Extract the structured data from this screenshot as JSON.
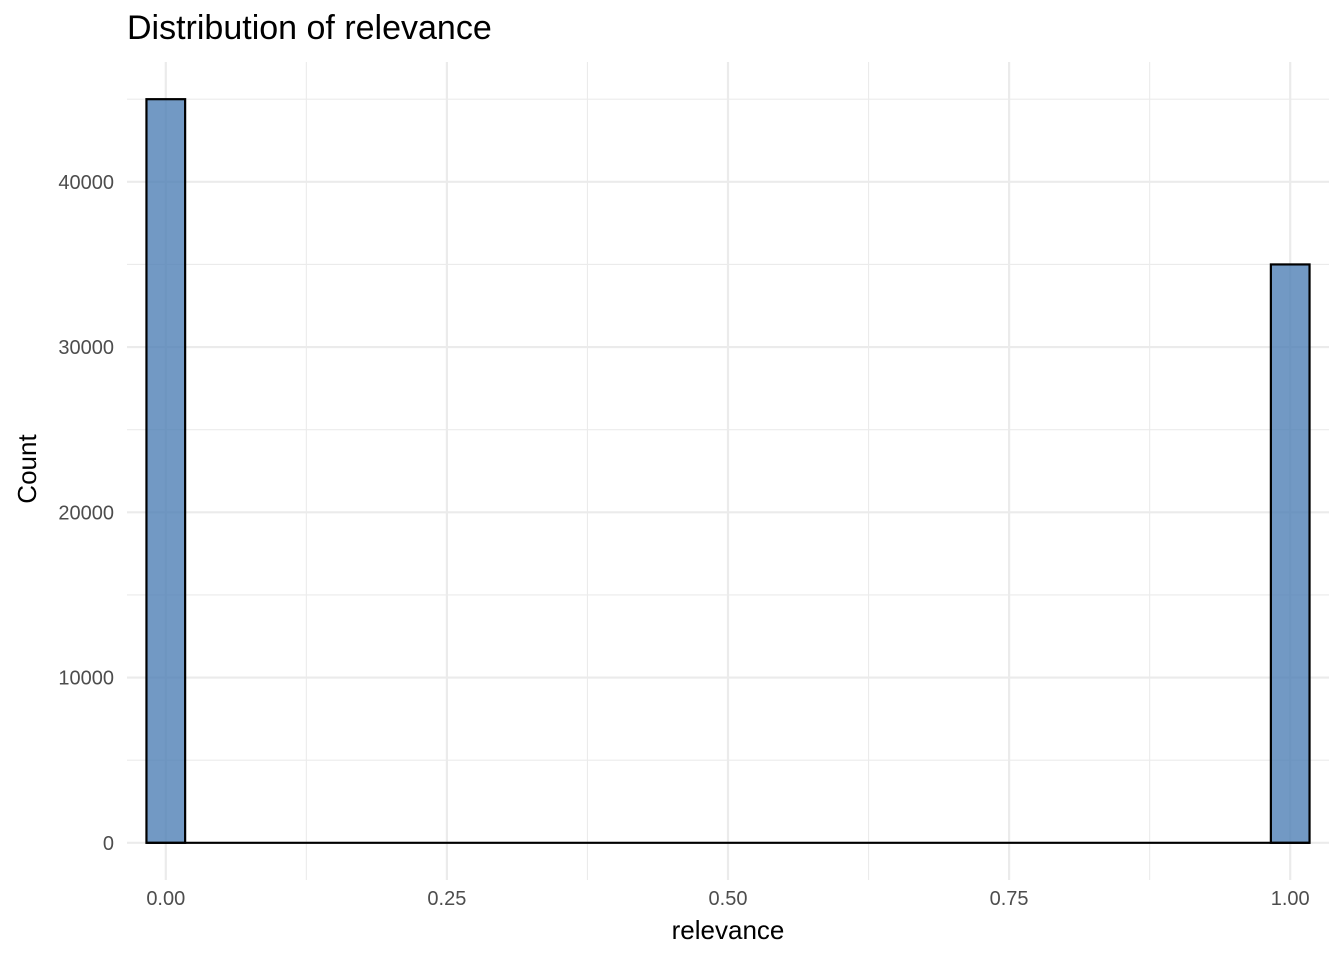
{
  "chart_data": {
    "type": "bar",
    "subtype": "histogram",
    "title": "Distribution of relevance",
    "xlabel": "relevance",
    "ylabel": "Count",
    "bins": 30,
    "xlim": [
      -0.0345,
      1.0345
    ],
    "ylim": [
      -2250,
      47250
    ],
    "x_ticks": [
      0.0,
      0.25,
      0.5,
      0.75,
      1.0
    ],
    "x_tick_labels": [
      "0.00",
      "0.25",
      "0.50",
      "0.75",
      "1.00"
    ],
    "y_ticks": [
      0,
      10000,
      20000,
      30000,
      40000
    ],
    "y_tick_labels": [
      "0",
      "10000",
      "20000",
      "30000",
      "40000"
    ],
    "x_minor_ticks": [
      0.125,
      0.375,
      0.625,
      0.875
    ],
    "y_minor_ticks": [
      5000,
      15000,
      25000,
      35000,
      45000
    ],
    "bars": [
      {
        "x_start": -0.0172,
        "x_end": 0.0172,
        "count": 45000
      },
      {
        "x_start": 0.9828,
        "x_end": 1.0172,
        "count": 35000
      }
    ],
    "fill_color": "#4f7fb5",
    "fill_opacity": 0.8,
    "outline_color": "#000000",
    "grid": true,
    "legend": "none"
  }
}
